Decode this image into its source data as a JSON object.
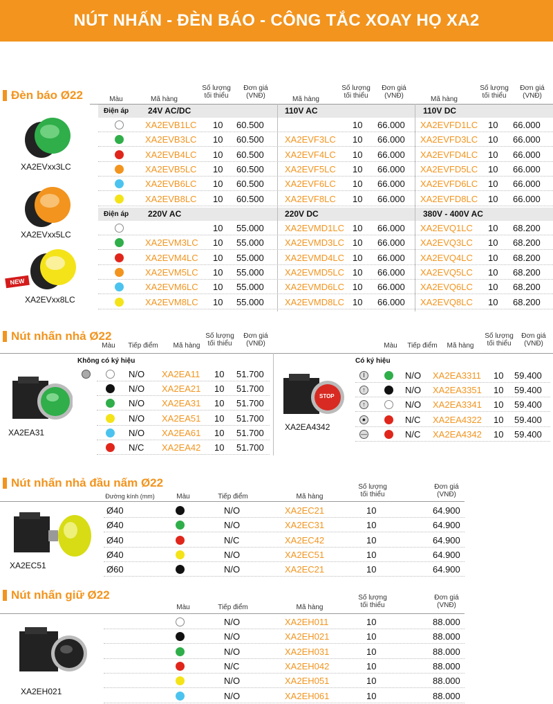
{
  "title": "NÚT NHẤN -  ĐÈN BÁO - CÔNG TẮC XOAY HỌ XA2",
  "colors": {
    "white": "#ffffff",
    "green": "#2fae4a",
    "red": "#e0261b",
    "orange": "#f2941e",
    "blue": "#4cc3ee",
    "yellow": "#f4e318",
    "black": "#111111"
  },
  "s1": {
    "title": "Đèn báo Ø22",
    "h_mau": "Màu",
    "h_ma": "Mã hàng",
    "h_sl": "Số lượng tối thiểu",
    "h_dg": "Đơn giá (VNĐ)",
    "dienap": "Điện áp",
    "g1": {
      "v1": "24V AC/DC",
      "v2": "110V AC",
      "v3": "110V DC",
      "rows": [
        {
          "c": "white",
          "a": "XA2EVB1LC",
          "aq": "10",
          "ap": "60.500",
          "b": "",
          "bq": "10",
          "bp": "66.000",
          "d": "XA2EVFD1LC",
          "dq": "10",
          "dp": "66.000"
        },
        {
          "c": "green",
          "a": "XA2EVB3LC",
          "aq": "10",
          "ap": "60.500",
          "b": "XA2EVF3LC",
          "bq": "10",
          "bp": "66.000",
          "d": "XA2EVFD3LC",
          "dq": "10",
          "dp": "66.000"
        },
        {
          "c": "red",
          "a": "XA2EVB4LC",
          "aq": "10",
          "ap": "60.500",
          "b": "XA2EVF4LC",
          "bq": "10",
          "bp": "66.000",
          "d": "XA2EVFD4LC",
          "dq": "10",
          "dp": "66.000"
        },
        {
          "c": "orange",
          "a": "XA2EVB5LC",
          "aq": "10",
          "ap": "60.500",
          "b": "XA2EVF5LC",
          "bq": "10",
          "bp": "66.000",
          "d": "XA2EVFD5LC",
          "dq": "10",
          "dp": "66.000"
        },
        {
          "c": "blue",
          "a": "XA2EVB6LC",
          "aq": "10",
          "ap": "60.500",
          "b": "XA2EVF6LC",
          "bq": "10",
          "bp": "66.000",
          "d": "XA2EVFD6LC",
          "dq": "10",
          "dp": "66.000"
        },
        {
          "c": "yellow",
          "a": "XA2EVB8LC",
          "aq": "10",
          "ap": "60.500",
          "b": "XA2EVF8LC",
          "bq": "10",
          "bp": "66.000",
          "d": "XA2EVFD8LC",
          "dq": "10",
          "dp": "66.000"
        }
      ]
    },
    "g2": {
      "v1": "220V AC",
      "v2": "220V DC",
      "v3": "380V - 400V AC",
      "rows": [
        {
          "c": "white",
          "a": "",
          "aq": "10",
          "ap": "55.000",
          "b": "XA2EVMD1LC",
          "bq": "10",
          "bp": "66.000",
          "d": "XA2EVQ1LC",
          "dq": "10",
          "dp": "68.200"
        },
        {
          "c": "green",
          "a": "XA2EVM3LC",
          "aq": "10",
          "ap": "55.000",
          "b": "XA2EVMD3LC",
          "bq": "10",
          "bp": "66.000",
          "d": "XA2EVQ3LC",
          "dq": "10",
          "dp": "68.200"
        },
        {
          "c": "red",
          "a": "XA2EVM4LC",
          "aq": "10",
          "ap": "55.000",
          "b": "XA2EVMD4LC",
          "bq": "10",
          "bp": "66.000",
          "d": "XA2EVQ4LC",
          "dq": "10",
          "dp": "68.200"
        },
        {
          "c": "orange",
          "a": "XA2EVM5LC",
          "aq": "10",
          "ap": "55.000",
          "b": "XA2EVMD5LC",
          "bq": "10",
          "bp": "66.000",
          "d": "XA2EVQ5LC",
          "dq": "10",
          "dp": "68.200"
        },
        {
          "c": "blue",
          "a": "XA2EVM6LC",
          "aq": "10",
          "ap": "55.000",
          "b": "XA2EVMD6LC",
          "bq": "10",
          "bp": "66.000",
          "d": "XA2EVQ6LC",
          "dq": "10",
          "dp": "68.200"
        },
        {
          "c": "yellow",
          "a": "XA2EVM8LC",
          "aq": "10",
          "ap": "55.000",
          "b": "XA2EVMD8LC",
          "bq": "10",
          "bp": "66.000",
          "d": "XA2EVQ8LC",
          "dq": "10",
          "dp": "68.200"
        }
      ]
    },
    "p1": "XA2EVxx3LC",
    "p2": "XA2EVxx5LC",
    "p3": "XA2EVxx8LC",
    "new": "NEW"
  },
  "s2": {
    "title": "Nút nhấn nhả Ø22",
    "h_mau": "Màu",
    "h_td": "Tiếp điểm",
    "h_ma": "Mã hàng",
    "h_sl": "Số lượng tối thiểu",
    "h_dg": "Đơn giá (VNĐ)",
    "left_title": "Không có ký hiệu",
    "right_title": "Có ký hiệu",
    "left": [
      {
        "c": "white",
        "t": "N/O",
        "m": "XA2EA11",
        "q": "10",
        "p": "51.700"
      },
      {
        "c": "black",
        "t": "N/O",
        "m": "XA2EA21",
        "q": "10",
        "p": "51.700"
      },
      {
        "c": "green",
        "t": "N/O",
        "m": "XA2EA31",
        "q": "10",
        "p": "51.700"
      },
      {
        "c": "yellow",
        "t": "N/O",
        "m": "XA2EA51",
        "q": "10",
        "p": "51.700"
      },
      {
        "c": "blue",
        "t": "N/O",
        "m": "XA2EA61",
        "q": "10",
        "p": "51.700"
      },
      {
        "c": "red",
        "t": "N/C",
        "m": "XA2EA42",
        "q": "10",
        "p": "51.700"
      }
    ],
    "right": [
      {
        "c": "green",
        "t": "N/O",
        "m": "XA2EA3311",
        "q": "10",
        "p": "59.400",
        "i": "I"
      },
      {
        "c": "black",
        "t": "N/O",
        "m": "XA2EA3351",
        "q": "10",
        "p": "59.400",
        "i": "↑"
      },
      {
        "c": "white",
        "t": "N/O",
        "m": "XA2EA3341",
        "q": "10",
        "p": "59.400",
        "i": "↑"
      },
      {
        "c": "red",
        "t": "N/C",
        "m": "XA2EA4322",
        "q": "10",
        "p": "59.400",
        "i": "●"
      },
      {
        "c": "red",
        "t": "N/C",
        "m": "XA2EA4342",
        "q": "10",
        "p": "59.400",
        "i": "—"
      }
    ],
    "pl": "XA2EA31",
    "pr": "XA2EA4342",
    "stop": "STOP"
  },
  "s3": {
    "title": "Nút nhấn nhả đầu nấm Ø22",
    "h_dk": "Đường kính (mm)",
    "h_mau": "Màu",
    "h_td": "Tiếp điểm",
    "h_ma": "Mã hàng",
    "h_sl": "Số lượng tối thiểu",
    "h_dg": "Đơn giá (VNĐ)",
    "rows": [
      {
        "d": "Ø40",
        "c": "black",
        "t": "N/O",
        "m": "XA2EC21",
        "q": "10",
        "p": "64.900"
      },
      {
        "d": "Ø40",
        "c": "green",
        "t": "N/O",
        "m": "XA2EC31",
        "q": "10",
        "p": "64.900"
      },
      {
        "d": "Ø40",
        "c": "red",
        "t": "N/C",
        "m": "XA2EC42",
        "q": "10",
        "p": "64.900"
      },
      {
        "d": "Ø40",
        "c": "yellow",
        "t": "N/O",
        "m": "XA2EC51",
        "q": "10",
        "p": "64.900"
      },
      {
        "d": "Ø60",
        "c": "black",
        "t": "N/O",
        "m": "XA2EC21",
        "q": "10",
        "p": "64.900"
      }
    ],
    "prod": "XA2EC51"
  },
  "s4": {
    "title": "Nút nhấn giữ Ø22",
    "h_mau": "Màu",
    "h_td": "Tiếp điểm",
    "h_ma": "Mã hàng",
    "h_sl": "Số lượng tối thiểu",
    "h_dg": "Đơn giá (VNĐ)",
    "rows": [
      {
        "c": "white",
        "t": "N/O",
        "m": "XA2EH011",
        "q": "10",
        "p": "88.000"
      },
      {
        "c": "black",
        "t": "N/O",
        "m": "XA2EH021",
        "q": "10",
        "p": "88.000"
      },
      {
        "c": "green",
        "t": "N/O",
        "m": "XA2EH031",
        "q": "10",
        "p": "88.000"
      },
      {
        "c": "red",
        "t": "N/C",
        "m": "XA2EH042",
        "q": "10",
        "p": "88.000"
      },
      {
        "c": "yellow",
        "t": "N/O",
        "m": "XA2EH051",
        "q": "10",
        "p": "88.000"
      },
      {
        "c": "blue",
        "t": "N/O",
        "m": "XA2EH061",
        "q": "10",
        "p": "88.000"
      }
    ],
    "prod": "XA2EH021"
  }
}
